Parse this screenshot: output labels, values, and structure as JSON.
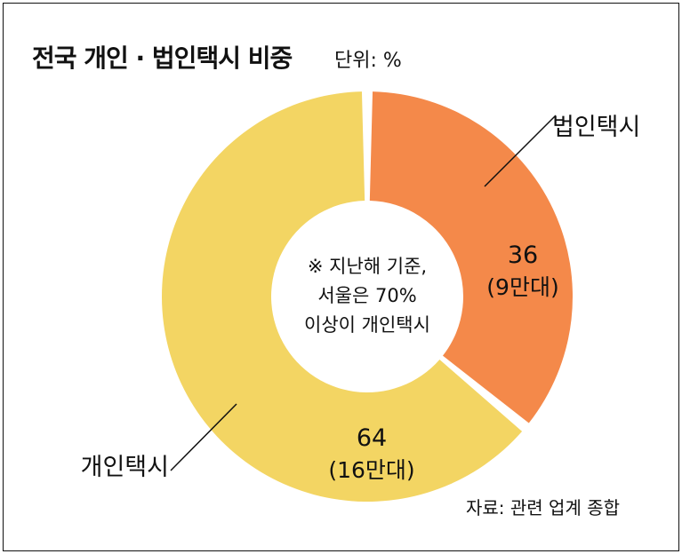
{
  "title": "전국 개인 · 법인택시 비중",
  "unit": "단위: %",
  "source": "자료: 관련 업계 종합",
  "center_note": [
    "※ 지난해 기준,",
    "서울은 70%",
    "이상이 개인택시"
  ],
  "colors": {
    "corporate": "#F4894A",
    "individual": "#F3D563",
    "text": "#111111"
  },
  "chart_data": {
    "type": "pie",
    "categories": [
      "법인택시",
      "개인택시"
    ],
    "values": [
      36,
      64
    ],
    "value_labels": [
      "36",
      "64"
    ],
    "count_labels": [
      "(9만대)",
      "(16만대)"
    ]
  }
}
